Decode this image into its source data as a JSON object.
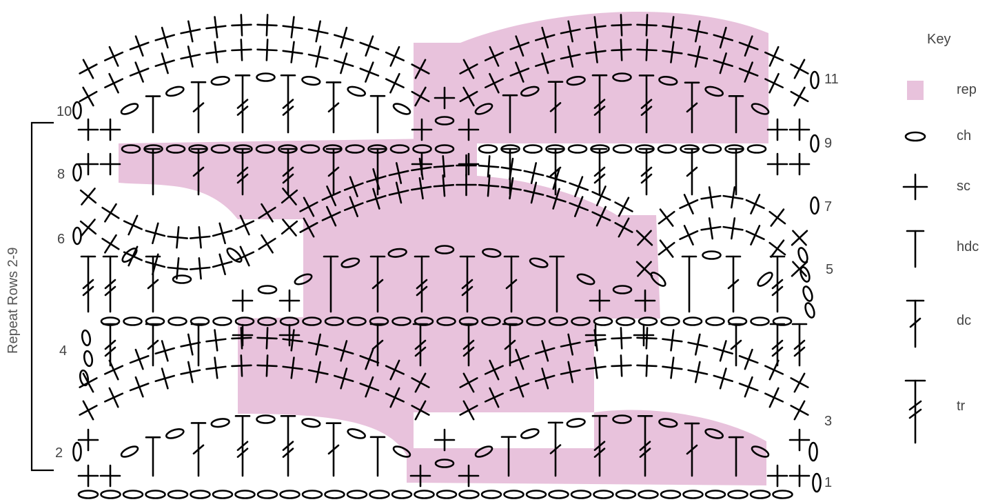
{
  "key": {
    "title": "Key",
    "rep_color": "#e8c2dc",
    "items": [
      {
        "symbol": "rep",
        "label": "rep"
      },
      {
        "symbol": "ch",
        "label": "ch"
      },
      {
        "symbol": "sc",
        "label": "sc"
      },
      {
        "symbol": "hdc",
        "label": "hdc"
      },
      {
        "symbol": "dc",
        "label": "dc"
      },
      {
        "symbol": "tr",
        "label": "tr"
      }
    ]
  },
  "bracket_label": "Repeat Rows 2-9",
  "row_numbers": {
    "left": [
      "10",
      "8",
      "6",
      "4",
      "2"
    ],
    "right": [
      "11",
      "9",
      "7",
      "5",
      "3",
      "1"
    ]
  }
}
